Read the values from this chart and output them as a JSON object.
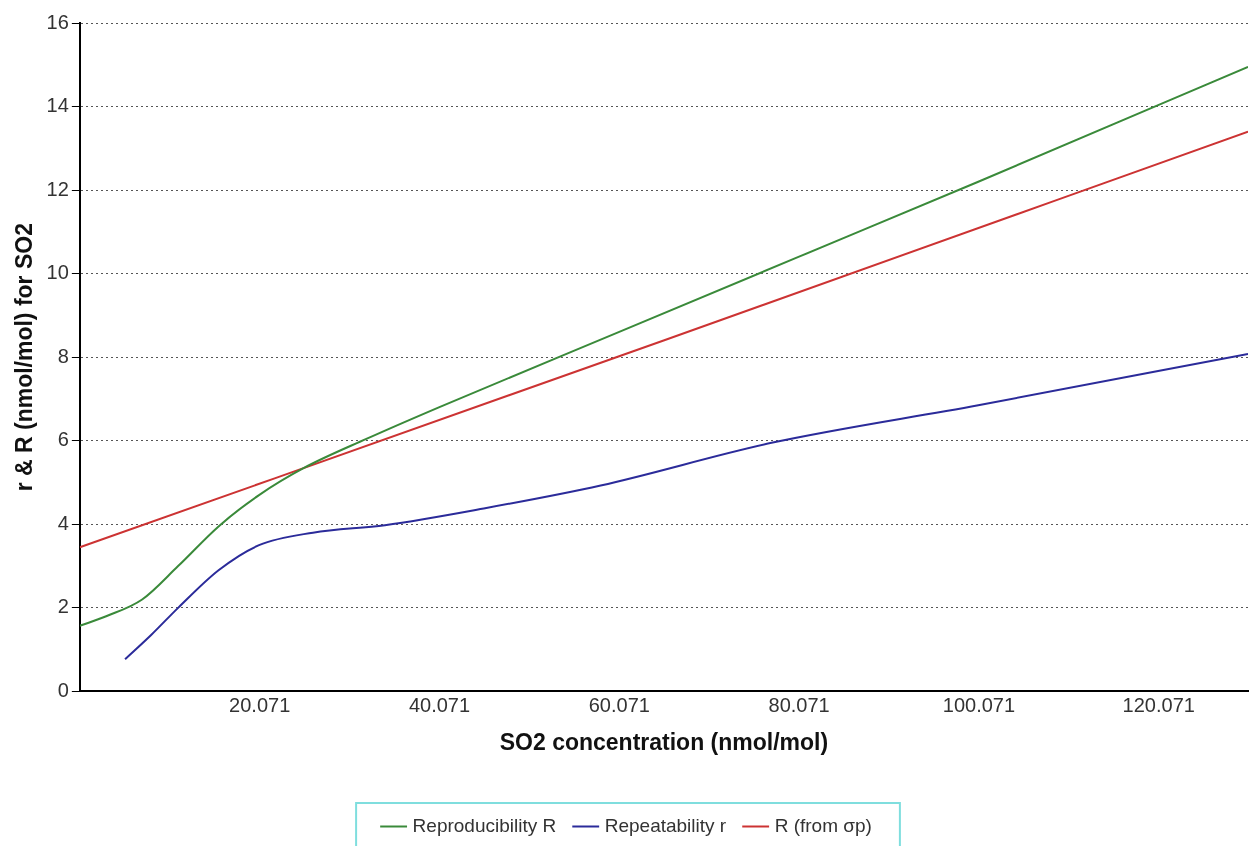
{
  "chart_data": {
    "type": "line",
    "xlabel": "SO2 concentration (nmol/mol)",
    "ylabel": "r & R (nmol/mol) for SO2",
    "xlim": [
      0.071,
      130
    ],
    "xticks": [
      20.071,
      40.071,
      60.071,
      80.071,
      100.071,
      120.071
    ],
    "ylim": [
      0,
      16
    ],
    "yticks": [
      0,
      2,
      4,
      6,
      8,
      10,
      12,
      14,
      16
    ],
    "grid": "y",
    "legend": "bottom",
    "marker": "none",
    "line_style": "solid",
    "series": [
      {
        "name": "Reproducibility R",
        "color": "#3a8a3a",
        "x": [
          0.071,
          3,
          7,
          11,
          15.5,
          20,
          25,
          32,
          40,
          60,
          80,
          100,
          130
        ],
        "values": [
          1.57,
          1.8,
          2.2,
          3.0,
          3.95,
          4.7,
          5.35,
          6.05,
          6.8,
          8.6,
          10.4,
          12.2,
          14.95
        ]
      },
      {
        "name": "Repeatability r",
        "color": "#2b2b9a",
        "x": [
          5.1,
          8,
          11,
          15.5,
          20,
          26,
          34,
          45,
          58,
          77,
          100,
          130
        ],
        "values": [
          0.77,
          1.35,
          2.0,
          2.9,
          3.5,
          3.8,
          3.98,
          4.38,
          4.93,
          5.95,
          6.85,
          8.08
        ]
      },
      {
        "name": "R (from σp)",
        "color": "#cc3333",
        "x": [
          0.071,
          65,
          130
        ],
        "values": [
          3.45,
          8.4,
          13.4
        ]
      }
    ]
  }
}
